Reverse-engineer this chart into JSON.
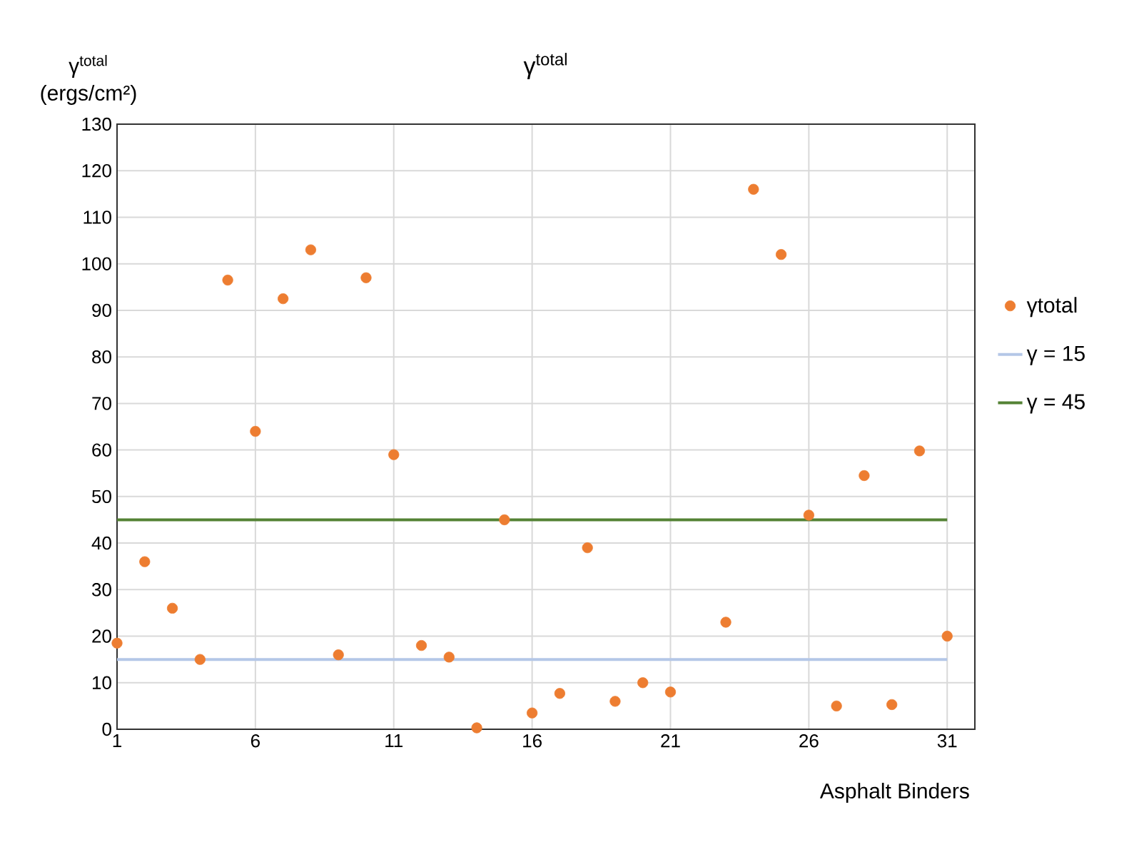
{
  "chart_data": {
    "type": "scatter",
    "title": "γ$^{total}$",
    "xlabel": "Asphalt Binders",
    "ylabel": "γ$^{total}$ (ergs/cm²)",
    "series": [
      {
        "name": "γtotal",
        "color": "#ed7d31",
        "x": [
          1,
          2,
          3,
          4,
          5,
          6,
          7,
          8,
          9,
          10,
          11,
          12,
          13,
          14,
          15,
          16,
          17,
          18,
          19,
          20,
          21,
          23,
          24,
          25,
          26,
          27,
          28,
          29,
          30,
          31
        ],
        "values": [
          18.5,
          36,
          26,
          15,
          96.5,
          64,
          92.5,
          103,
          16,
          97,
          59,
          18,
          15.5,
          0.3,
          45,
          3.5,
          7.7,
          39,
          6,
          10,
          8,
          23,
          116,
          102,
          46,
          5,
          54.5,
          5.3,
          59.8,
          20
        ]
      }
    ],
    "ref_lines": [
      {
        "axis": "y",
        "value": 15,
        "label": "γ = 15",
        "color": "#b4c7e7"
      },
      {
        "axis": "y",
        "value": 45,
        "label": "γ = 45",
        "color": "#548235"
      }
    ],
    "xlim": [
      1,
      32
    ],
    "xticks": [
      1,
      6,
      11,
      16,
      21,
      26,
      31
    ],
    "ylim": [
      0,
      130
    ],
    "yticks": [
      0,
      10,
      20,
      30,
      40,
      50,
      60,
      70,
      80,
      90,
      100,
      110,
      120,
      130
    ],
    "grid": true,
    "legend": "right"
  }
}
